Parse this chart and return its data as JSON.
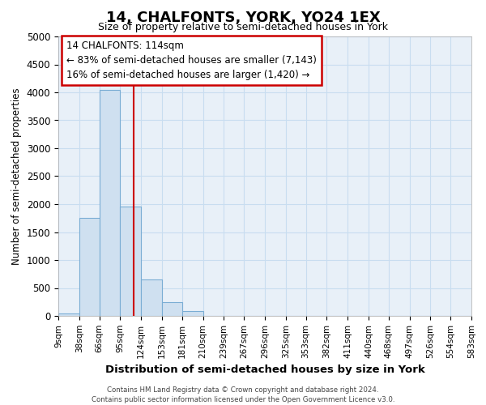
{
  "title": "14, CHALFONTS, YORK, YO24 1EX",
  "subtitle": "Size of property relative to semi-detached houses in York",
  "xlabel": "Distribution of semi-detached houses by size in York",
  "ylabel": "Number of semi-detached properties",
  "footer_line1": "Contains HM Land Registry data © Crown copyright and database right 2024.",
  "footer_line2": "Contains public sector information licensed under the Open Government Licence v3.0.",
  "annotation_title": "14 CHALFONTS: 114sqm",
  "annotation_line1": "← 83% of semi-detached houses are smaller (7,143)",
  "annotation_line2": "16% of semi-detached houses are larger (1,420) →",
  "property_size": 114,
  "bar_color": "#cfe0f0",
  "bar_edge_color": "#7aadd4",
  "vline_color": "#cc0000",
  "annotation_box_color": "#cc0000",
  "grid_color": "#c8ddf0",
  "background_color": "#e8f0f8",
  "ylim": [
    0,
    5000
  ],
  "yticks": [
    0,
    500,
    1000,
    1500,
    2000,
    2500,
    3000,
    3500,
    4000,
    4500,
    5000
  ],
  "bin_edges": [
    9,
    38,
    66,
    95,
    124,
    153,
    181,
    210,
    239,
    267,
    296,
    325,
    353,
    382,
    411,
    440,
    468,
    497,
    526,
    554,
    583
  ],
  "bin_labels": [
    "9sqm",
    "38sqm",
    "66sqm",
    "95sqm",
    "124sqm",
    "153sqm",
    "181sqm",
    "210sqm",
    "239sqm",
    "267sqm",
    "296sqm",
    "325sqm",
    "353sqm",
    "382sqm",
    "411sqm",
    "440sqm",
    "468sqm",
    "497sqm",
    "526sqm",
    "554sqm",
    "583sqm"
  ],
  "bar_heights": [
    50,
    1750,
    4050,
    1950,
    650,
    240,
    90,
    0,
    0,
    0,
    0,
    0,
    0,
    0,
    0,
    0,
    0,
    0,
    0,
    0
  ]
}
